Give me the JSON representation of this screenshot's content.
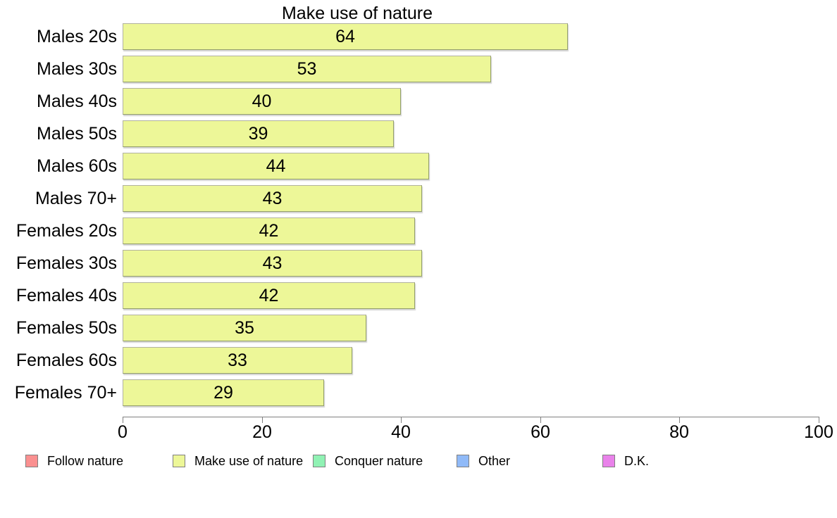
{
  "chart_data": {
    "type": "bar",
    "orientation": "horizontal",
    "title": "Make use of nature",
    "categories": [
      "Males 20s",
      "Males 30s",
      "Males 40s",
      "Males 50s",
      "Males 60s",
      "Males 70+",
      "Females 20s",
      "Females 30s",
      "Females 40s",
      "Females 50s",
      "Females 60s",
      "Females 70+"
    ],
    "values": [
      64,
      53,
      40,
      39,
      44,
      43,
      42,
      43,
      42,
      35,
      33,
      29
    ],
    "xlim": [
      0,
      100
    ],
    "x_ticks": [
      "0",
      "20",
      "40",
      "60",
      "80",
      "100"
    ],
    "grid": false,
    "value_labels": "inside-center",
    "bar_color": "#edf798",
    "bar_border_color": "#9aa06a",
    "axis_color": "#808080",
    "text_color": "#000000",
    "legend_position": "bottom",
    "legend": [
      {
        "label": "Follow nature",
        "color": "#fa9090",
        "swatch": "follow-nature-swatch"
      },
      {
        "label": "Make use of nature",
        "color": "#edf798",
        "swatch": "make-use-of-nature-swatch"
      },
      {
        "label": "Conquer nature",
        "color": "#90f2b4",
        "swatch": "conquer-nature-swatch"
      },
      {
        "label": "Other",
        "color": "#90baf8",
        "swatch": "other-swatch"
      },
      {
        "label": "D.K.",
        "color": "#e982ea",
        "swatch": "dk-swatch"
      }
    ]
  }
}
